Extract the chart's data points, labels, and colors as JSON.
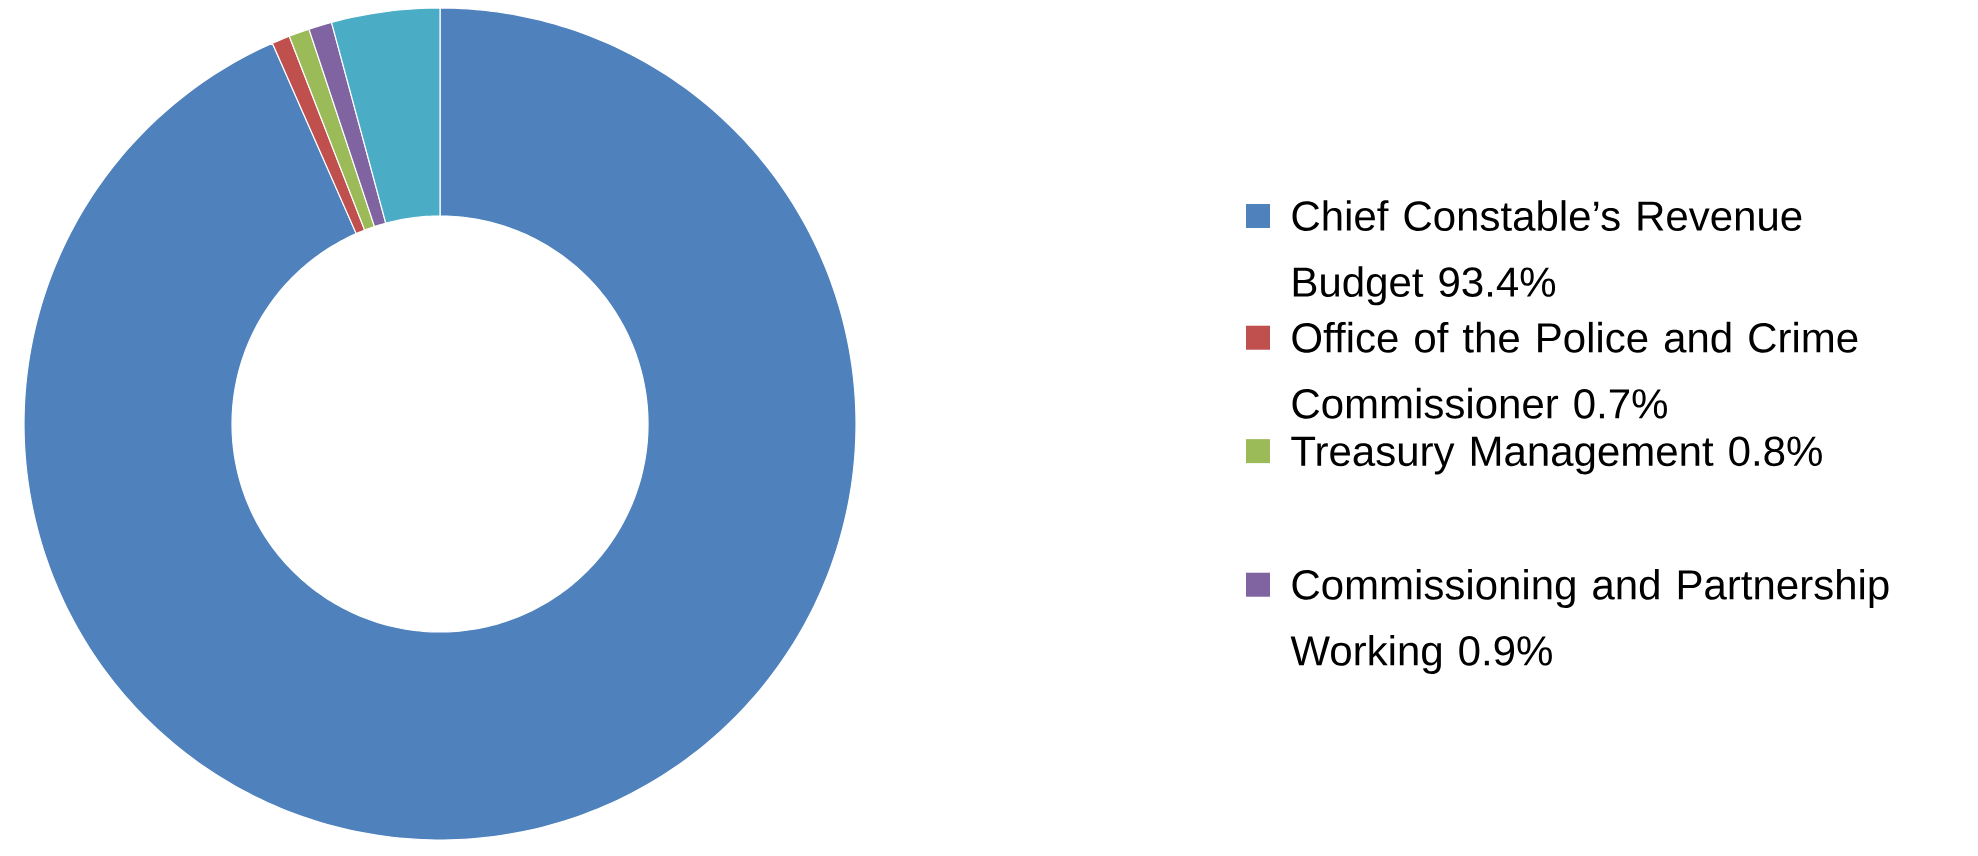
{
  "chart_data": {
    "type": "donut",
    "categories": [
      "Chief Constable’s Revenue Budget 93.4%",
      "Office of the Police and Crime Commissioner 0.7%",
      "Treasury Management 0.8%",
      null,
      "Commissioning and Partnership Working 0.9%"
    ],
    "values": [
      93.4,
      0.7,
      0.8,
      4.2,
      0.9
    ],
    "colors": [
      "#4f81bd",
      "#c0504d",
      "#9bbb59",
      "#4bacc6",
      "#8064a2"
    ],
    "legend": "right"
  }
}
